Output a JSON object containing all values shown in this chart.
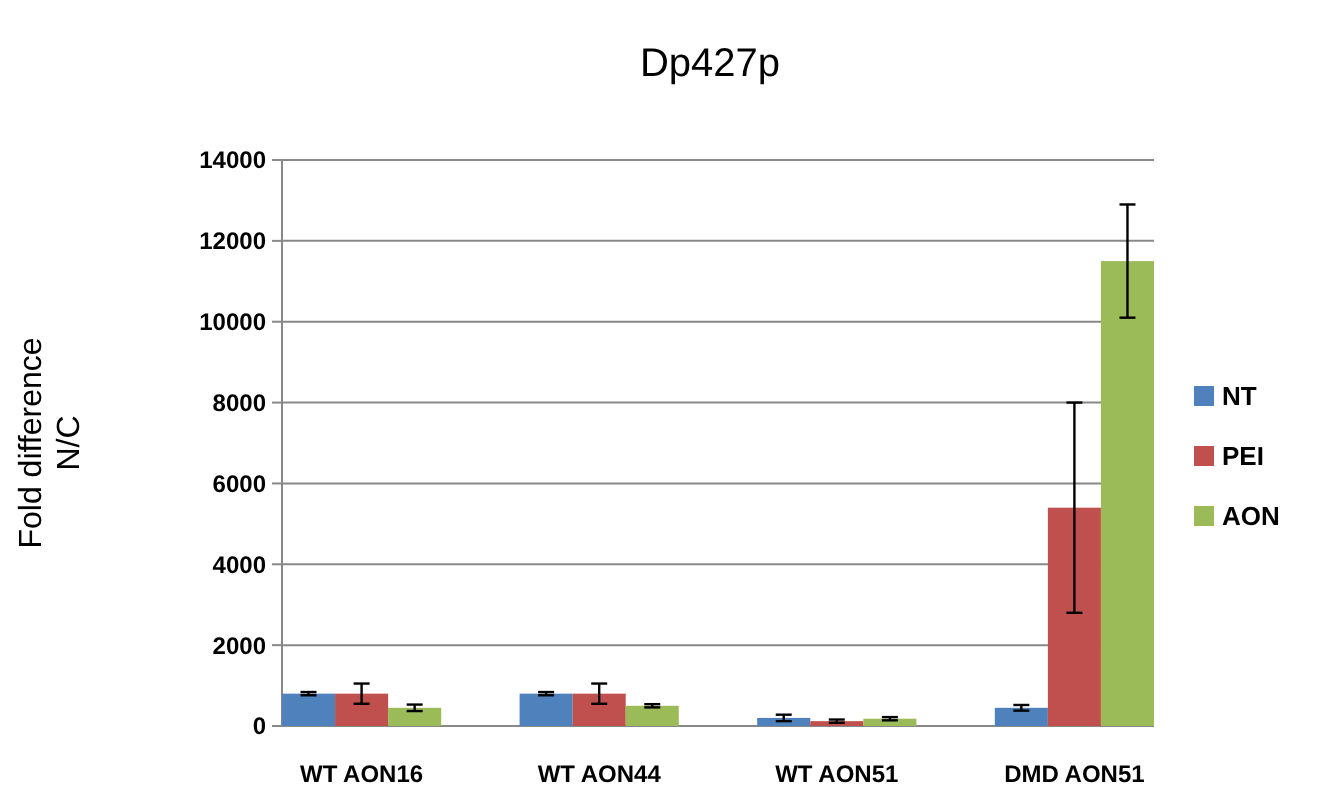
{
  "chart_data": {
    "type": "bar",
    "title": "Dp427p",
    "ylabel": "Fold difference N/C",
    "categories": [
      "WT AON16",
      "WT AON44",
      "WT AON51",
      "DMD AON51"
    ],
    "series": [
      {
        "name": "NT",
        "color": "#4f81bd",
        "values": [
          800,
          800,
          200,
          450
        ],
        "errors": [
          40,
          40,
          80,
          70
        ]
      },
      {
        "name": "PEI",
        "color": "#c0504d",
        "values": [
          800,
          800,
          120,
          5400
        ],
        "errors": [
          250,
          250,
          40,
          2600
        ]
      },
      {
        "name": "AON",
        "color": "#9bbb59",
        "values": [
          450,
          500,
          180,
          11500
        ],
        "errors": [
          80,
          40,
          40,
          1400
        ]
      }
    ],
    "ylim": [
      0,
      14000
    ],
    "yticks": [
      0,
      2000,
      4000,
      6000,
      8000,
      10000,
      12000,
      14000
    ],
    "grid": "y",
    "legend": "right"
  }
}
